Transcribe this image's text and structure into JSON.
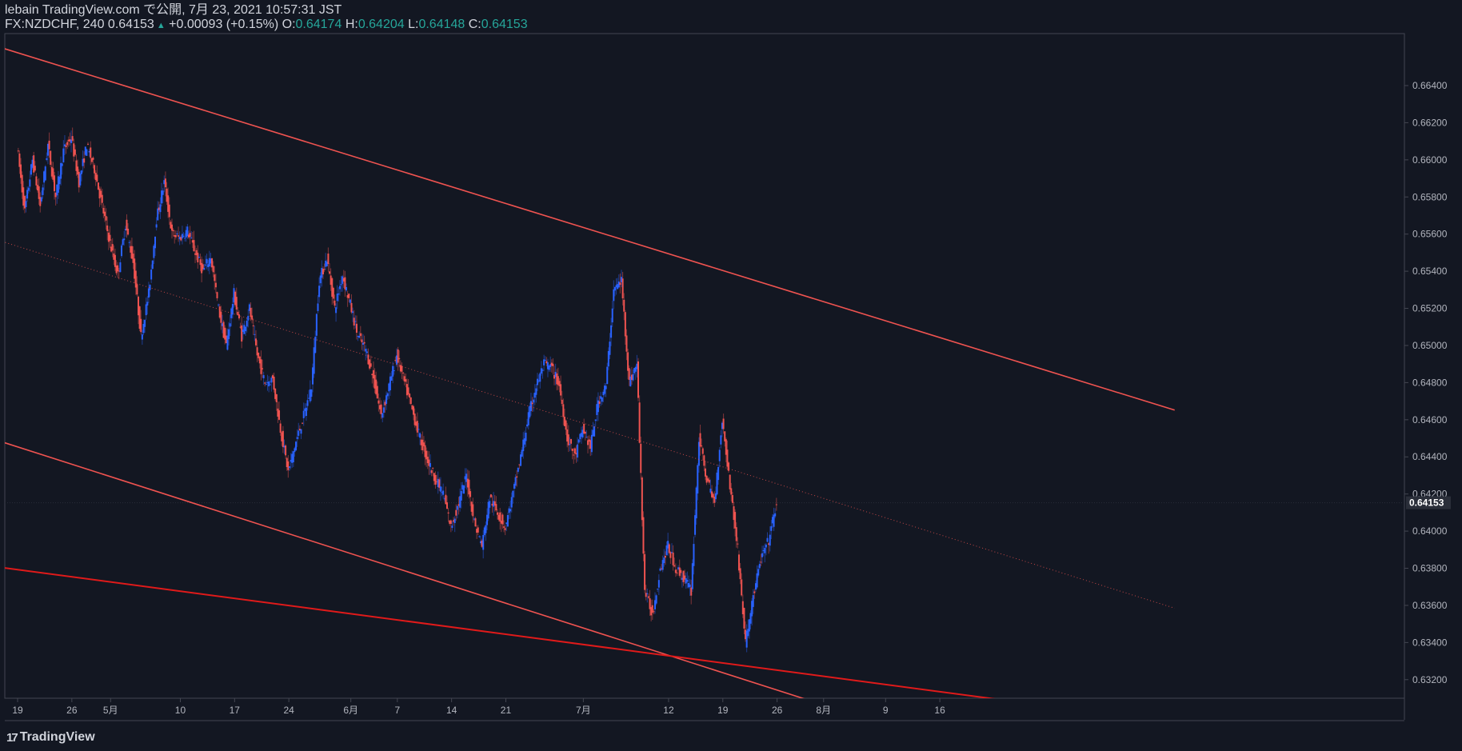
{
  "header": {
    "published": "lebain TradingView.com で公開, 7月 23, 2021 10:57:31 JST",
    "symbol": "FX:NZDCHF, 240",
    "last": "0.64153",
    "change": "+0.00093 (+0.15%)",
    "o_label": "O:",
    "o_value": "0.64174",
    "h_label": "H:",
    "h_value": "0.64204",
    "l_label": "L:",
    "l_value": "0.64148",
    "c_label": "C:",
    "c_value": "0.64153"
  },
  "footer": {
    "brand": "TradingView",
    "logo": "17"
  },
  "colors": {
    "background": "#131722",
    "up": "#2962ff",
    "down": "#ef5350",
    "text": "#d1d4dc",
    "teal": "#26a69a",
    "trendline": "#ef5350",
    "trendline_bold": "#e01a1a"
  },
  "chart_data": {
    "type": "line",
    "symbol": "FX:NZDCHF",
    "timeframe": "240",
    "ylim": [
      0.631,
      0.6668
    ],
    "y_ticks": [
      "0.66400",
      "0.66200",
      "0.66000",
      "0.65800",
      "0.65600",
      "0.65400",
      "0.65200",
      "0.65000",
      "0.64800",
      "0.64600",
      "0.64400",
      "0.64200",
      "0.64000",
      "0.63800",
      "0.63600",
      "0.63400",
      "0.63200"
    ],
    "x_ticks": [
      {
        "label": "19",
        "day": 0
      },
      {
        "label": "26",
        "day": 7
      },
      {
        "label": "5月",
        "day": 12
      },
      {
        "label": "10",
        "day": 21
      },
      {
        "label": "17",
        "day": 28
      },
      {
        "label": "24",
        "day": 35
      },
      {
        "label": "6月",
        "day": 43
      },
      {
        "label": "7",
        "day": 49
      },
      {
        "label": "14",
        "day": 56
      },
      {
        "label": "21",
        "day": 63
      },
      {
        "label": "7月",
        "day": 73
      },
      {
        "label": "12",
        "day": 84
      },
      {
        "label": "19",
        "day": 91
      },
      {
        "label": "26",
        "day": 98
      },
      {
        "label": "8月",
        "day": 104
      },
      {
        "label": "9",
        "day": 112
      },
      {
        "label": "16",
        "day": 119
      }
    ],
    "last_price": 0.64153,
    "last_price_label": "0.64153",
    "close_path": [
      [
        0,
        0.6608
      ],
      [
        1,
        0.6572
      ],
      [
        2,
        0.66
      ],
      [
        3,
        0.6575
      ],
      [
        4,
        0.6608
      ],
      [
        5,
        0.658
      ],
      [
        6,
        0.6605
      ],
      [
        7,
        0.6612
      ],
      [
        8,
        0.6588
      ],
      [
        9,
        0.6608
      ],
      [
        10,
        0.6595
      ],
      [
        11,
        0.6575
      ],
      [
        12,
        0.6555
      ],
      [
        13,
        0.6538
      ],
      [
        14,
        0.6565
      ],
      [
        15,
        0.6545
      ],
      [
        16,
        0.6505
      ],
      [
        17,
        0.6528
      ],
      [
        18,
        0.6568
      ],
      [
        19,
        0.6588
      ],
      [
        20,
        0.656
      ],
      [
        21,
        0.6558
      ],
      [
        22,
        0.6562
      ],
      [
        23,
        0.655
      ],
      [
        24,
        0.654
      ],
      [
        25,
        0.6548
      ],
      [
        26,
        0.652
      ],
      [
        27,
        0.65
      ],
      [
        28,
        0.6528
      ],
      [
        29,
        0.6505
      ],
      [
        30,
        0.652
      ],
      [
        31,
        0.6495
      ],
      [
        32,
        0.648
      ],
      [
        33,
        0.6482
      ],
      [
        34,
        0.6455
      ],
      [
        35,
        0.6432
      ],
      [
        36,
        0.6448
      ],
      [
        37,
        0.6462
      ],
      [
        38,
        0.6478
      ],
      [
        39,
        0.6535
      ],
      [
        40,
        0.6547
      ],
      [
        41,
        0.652
      ],
      [
        42,
        0.6538
      ],
      [
        43,
        0.6522
      ],
      [
        44,
        0.6505
      ],
      [
        45,
        0.6498
      ],
      [
        46,
        0.6482
      ],
      [
        47,
        0.6462
      ],
      [
        48,
        0.6478
      ],
      [
        49,
        0.6495
      ],
      [
        50,
        0.648
      ],
      [
        51,
        0.6465
      ],
      [
        52,
        0.645
      ],
      [
        53,
        0.6438
      ],
      [
        54,
        0.6428
      ],
      [
        55,
        0.642
      ],
      [
        56,
        0.6402
      ],
      [
        57,
        0.6415
      ],
      [
        58,
        0.643
      ],
      [
        59,
        0.6405
      ],
      [
        60,
        0.6392
      ],
      [
        61,
        0.6418
      ],
      [
        62,
        0.641
      ],
      [
        63,
        0.6402
      ],
      [
        64,
        0.642
      ],
      [
        65,
        0.644
      ],
      [
        66,
        0.6462
      ],
      [
        67,
        0.6478
      ],
      [
        68,
        0.649
      ],
      [
        69,
        0.6488
      ],
      [
        70,
        0.6478
      ],
      [
        71,
        0.645
      ],
      [
        72,
        0.644
      ],
      [
        73,
        0.6455
      ],
      [
        74,
        0.6445
      ],
      [
        75,
        0.647
      ],
      [
        76,
        0.6478
      ],
      [
        77,
        0.653
      ],
      [
        78,
        0.6535
      ],
      [
        79,
        0.648
      ],
      [
        80,
        0.649
      ],
      [
        81,
        0.6368
      ],
      [
        82,
        0.6355
      ],
      [
        83,
        0.638
      ],
      [
        84,
        0.6392
      ],
      [
        85,
        0.638
      ],
      [
        86,
        0.6375
      ],
      [
        87,
        0.6368
      ],
      [
        88,
        0.645
      ],
      [
        89,
        0.6428
      ],
      [
        90,
        0.6415
      ],
      [
        91,
        0.646
      ],
      [
        92,
        0.6425
      ],
      [
        93,
        0.639
      ],
      [
        94,
        0.634
      ],
      [
        95,
        0.6365
      ],
      [
        96,
        0.6385
      ],
      [
        97,
        0.6395
      ],
      [
        98,
        0.6415
      ]
    ],
    "trendlines": [
      {
        "name": "channel-upper",
        "from": {
          "day": -17.3,
          "price": 0.668
        },
        "to": {
          "day": 149.3,
          "price": 0.64652
        }
      },
      {
        "name": "channel-lower",
        "from": {
          "day": -17.3,
          "price": 0.64685
        },
        "to": {
          "day": 124.1,
          "price": 0.62795
        }
      },
      {
        "name": "support-line",
        "from": {
          "day": -17.3,
          "price": 0.63888
        },
        "to": {
          "day": 147.1,
          "price": 0.6298
        }
      },
      {
        "name": "channel-mid-dotted",
        "from": {
          "day": -15.0,
          "price": 0.6573
        },
        "to": {
          "day": 149.3,
          "price": 0.63585
        }
      }
    ]
  }
}
